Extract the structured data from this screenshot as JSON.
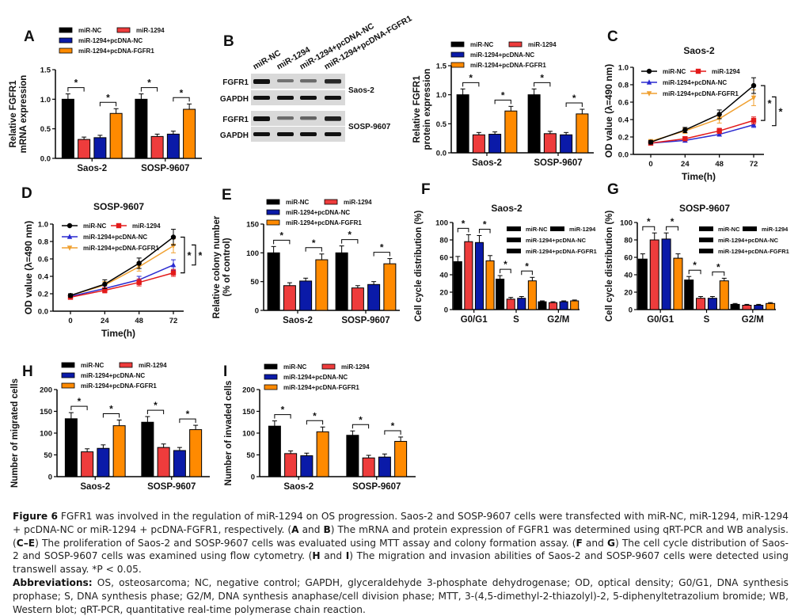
{
  "figure": {
    "number_label": "Figure 6",
    "title_text": "FGFR1 was involved in the regulation of miR-1294 on OS progression. Saos-2 and SOSP-9607 cells were transfected with miR-NC, miR-1294, miR-1294 + pcDNA-NC or miR-1294 + pcDNA-FGFR1, respectively.",
    "caption_parts": [
      {
        "t": "(",
        "b": false
      },
      {
        "t": "A",
        "b": true
      },
      {
        "t": " and ",
        "b": false
      },
      {
        "t": "B",
        "b": true
      },
      {
        "t": ") The mRNA and protein expression of FGFR1 was determined using qRT-PCR and WB analysis. (",
        "b": false
      },
      {
        "t": "C–E",
        "b": true
      },
      {
        "t": ") The proliferation of Saos-2 and SOSP-9607 cells was evaluated using MTT assay and colony formation assay. (",
        "b": false
      },
      {
        "t": "F",
        "b": true
      },
      {
        "t": " and ",
        "b": false
      },
      {
        "t": "G",
        "b": true
      },
      {
        "t": ") The cell cycle distribution of Saos-2 and SOSP-9607 cells was examined using flow cytometry. (",
        "b": false
      },
      {
        "t": "H",
        "b": true
      },
      {
        "t": " and ",
        "b": false
      },
      {
        "t": "I",
        "b": true
      },
      {
        "t": ") The migration and invasion abilities of Saos-2 and SOSP-9607 cells were detected using transwell assay. *P < 0.05.",
        "b": false
      }
    ],
    "abbreviations_label": "Abbreviations:",
    "abbreviations_text": "OS, osteosarcoma; NC, negative control; GAPDH, glyceraldehyde 3-phosphate dehydrogenase; OD, optical density; G0/G1, DNA synthesis prophase; S, DNA synthesis phase; G2/M, DNA synthesis anaphase/cell division phase; MTT, 3-(4,5-dimethyl-2-thiazolyl)-2, 5-diphenyltetrazolium bromide; WB, Western blot; qRT-PCR, quantitative real-time polymerase chain reaction."
  },
  "colors": {
    "miR-NC": "#000000",
    "miR-1294": "#ee3c3c",
    "miR-1294+pcDNA-NC": "#0a1aa8",
    "miR-1294+pcDNA-FGFR1": "#ff8a00",
    "line_orange": "#f0a030",
    "line_red": "#e31a1a",
    "line_blue": "#2a2ad0"
  },
  "legend_names": [
    "miR-NC",
    "miR-1294",
    "miR-1294+pcDNA-NC",
    "miR-1294+pcDNA-FGFR1"
  ],
  "panel_B_blot": {
    "label": "B",
    "lane_labels": [
      "miR-NC",
      "miR-1294",
      "miR-1294+pcDNA-NC",
      "miR-1294+pcDNA-FGFR1"
    ],
    "rows": [
      {
        "protein": "FGFR1",
        "cell_line": "Saos-2",
        "intensity": [
          1.0,
          0.35,
          0.4,
          0.85
        ]
      },
      {
        "protein": "GAPDH",
        "cell_line": "Saos-2",
        "intensity": [
          1.0,
          1.0,
          1.0,
          1.0
        ]
      },
      {
        "protein": "FGFR1",
        "cell_line": "SOSP-9607",
        "intensity": [
          1.0,
          0.4,
          0.45,
          0.9
        ]
      },
      {
        "protein": "GAPDH",
        "cell_line": "SOSP-9607",
        "intensity": [
          1.0,
          1.0,
          1.0,
          1.0
        ]
      }
    ],
    "cell_line_labels": [
      "Saos-2",
      "SOSP-9607"
    ]
  },
  "chart_data": [
    {
      "id": "A",
      "panel_label": "A",
      "type": "bar",
      "title": "",
      "ylabel": [
        "Relative FGFR1",
        "mRNA expression"
      ],
      "ylim": [
        0,
        1.5
      ],
      "yticks": [
        "0.0",
        "0.5",
        "1.0",
        "1.5"
      ],
      "ytick_values": [
        0,
        0.5,
        1.0,
        1.5
      ],
      "categories": [
        "Saos-2",
        "SOSP-9607"
      ],
      "series": [
        {
          "name": "miR-NC",
          "values": [
            1.0,
            1.0
          ],
          "errors": [
            0.09,
            0.09
          ]
        },
        {
          "name": "miR-1294",
          "values": [
            0.32,
            0.37
          ],
          "errors": [
            0.04,
            0.04
          ]
        },
        {
          "name": "miR-1294+pcDNA-NC",
          "values": [
            0.35,
            0.41
          ],
          "errors": [
            0.04,
            0.05
          ]
        },
        {
          "name": "miR-1294+pcDNA-FGFR1",
          "values": [
            0.76,
            0.83
          ],
          "errors": [
            0.08,
            0.09
          ]
        }
      ],
      "significance": [
        {
          "cat": 0,
          "pair": [
            0,
            1
          ]
        },
        {
          "cat": 0,
          "pair": [
            2,
            3
          ]
        },
        {
          "cat": 1,
          "pair": [
            0,
            1
          ]
        },
        {
          "cat": 1,
          "pair": [
            2,
            3
          ]
        }
      ],
      "sig_label": "*",
      "legend": "top"
    },
    {
      "id": "B2",
      "panel_label": "",
      "type": "bar",
      "title": "",
      "ylabel": [
        "Relative FGFR1",
        "protein expression"
      ],
      "ylim": [
        0,
        1.5
      ],
      "yticks": [
        "0.0",
        "0.5",
        "1.0",
        "1.5"
      ],
      "ytick_values": [
        0,
        0.5,
        1.0,
        1.5
      ],
      "categories": [
        "Saos-2",
        "SOSP-9607"
      ],
      "series": [
        {
          "name": "miR-NC",
          "values": [
            1.0,
            1.0
          ],
          "errors": [
            0.1,
            0.1
          ]
        },
        {
          "name": "miR-1294",
          "values": [
            0.31,
            0.33
          ],
          "errors": [
            0.04,
            0.04
          ]
        },
        {
          "name": "miR-1294+pcDNA-NC",
          "values": [
            0.32,
            0.31
          ],
          "errors": [
            0.04,
            0.04
          ]
        },
        {
          "name": "miR-1294+pcDNA-FGFR1",
          "values": [
            0.72,
            0.67
          ],
          "errors": [
            0.08,
            0.08
          ]
        }
      ],
      "significance": [
        {
          "cat": 0,
          "pair": [
            0,
            1
          ]
        },
        {
          "cat": 0,
          "pair": [
            2,
            3
          ]
        },
        {
          "cat": 1,
          "pair": [
            0,
            1
          ]
        },
        {
          "cat": 1,
          "pair": [
            2,
            3
          ]
        }
      ],
      "sig_label": "*",
      "legend": "top"
    },
    {
      "id": "C",
      "panel_label": "C",
      "type": "line",
      "title": "Saos-2",
      "xlabel": "Time(h)",
      "ylabel": "OD value (λ=490 nm)",
      "x": [
        0,
        24,
        48,
        72
      ],
      "xticks": [
        "0",
        "24",
        "48",
        "72"
      ],
      "ylim": [
        0,
        1.0
      ],
      "yticks": [
        "0.0",
        "0.2",
        "0.4",
        "0.6",
        "0.8",
        "1.0"
      ],
      "ytick_values": [
        0,
        0.2,
        0.4,
        0.6,
        0.8,
        1.0
      ],
      "series": [
        {
          "name": "miR-NC",
          "marker": "circle",
          "values": [
            0.14,
            0.28,
            0.46,
            0.79
          ],
          "errors": [
            0.02,
            0.03,
            0.05,
            0.09
          ]
        },
        {
          "name": "miR-1294",
          "marker": "square",
          "values": [
            0.13,
            0.18,
            0.27,
            0.39
          ],
          "errors": [
            0.01,
            0.02,
            0.03,
            0.04
          ]
        },
        {
          "name": "miR-1294+pcDNA-NC",
          "marker": "triangle-up",
          "values": [
            0.13,
            0.16,
            0.23,
            0.34
          ],
          "errors": [
            0.01,
            0.02,
            0.02,
            0.03
          ]
        },
        {
          "name": "miR-1294+pcDNA-FGFR1",
          "marker": "triangle-down",
          "values": [
            0.15,
            0.27,
            0.41,
            0.65
          ],
          "errors": [
            0.02,
            0.03,
            0.05,
            0.09
          ]
        }
      ],
      "significance_brackets": [
        {
          "from": 0.79,
          "to": 0.39,
          "label": "*"
        },
        {
          "from": 0.66,
          "to": 0.33,
          "label": "*"
        }
      ],
      "legend": "top-left"
    },
    {
      "id": "D",
      "panel_label": "D",
      "type": "line",
      "title": "SOSP-9607",
      "xlabel": "Time(h)",
      "ylabel": "OD value (λ=490 nm)",
      "x": [
        0,
        24,
        48,
        72
      ],
      "xticks": [
        "0",
        "24",
        "48",
        "72"
      ],
      "ylim": [
        0,
        1.0
      ],
      "yticks": [
        "0.0",
        "0.2",
        "0.4",
        "0.6",
        "0.8",
        "1.0"
      ],
      "ytick_values": [
        0,
        0.2,
        0.4,
        0.6,
        0.8,
        1.0
      ],
      "series": [
        {
          "name": "miR-NC",
          "marker": "circle",
          "values": [
            0.18,
            0.31,
            0.55,
            0.85
          ],
          "errors": [
            0.02,
            0.05,
            0.06,
            0.09
          ]
        },
        {
          "name": "miR-1294",
          "marker": "square",
          "values": [
            0.16,
            0.24,
            0.33,
            0.44
          ],
          "errors": [
            0.02,
            0.03,
            0.04,
            0.04
          ]
        },
        {
          "name": "miR-1294+pcDNA-NC",
          "marker": "triangle-up",
          "values": [
            0.17,
            0.26,
            0.36,
            0.53
          ],
          "errors": [
            0.02,
            0.03,
            0.04,
            0.06
          ]
        },
        {
          "name": "miR-1294+pcDNA-FGFR1",
          "marker": "triangle-down",
          "values": [
            0.18,
            0.3,
            0.51,
            0.75
          ],
          "errors": [
            0.02,
            0.04,
            0.05,
            0.08
          ]
        }
      ],
      "significance_brackets": [
        {
          "from": 0.85,
          "to": 0.44,
          "label": "*"
        },
        {
          "from": 0.76,
          "to": 0.53,
          "label": "*"
        }
      ],
      "legend": "top-left"
    },
    {
      "id": "E",
      "panel_label": "E",
      "type": "bar",
      "title": "",
      "ylabel": [
        "Relative colony number",
        "(% of control)"
      ],
      "ylim": [
        0,
        150
      ],
      "yticks": [
        "0",
        "50",
        "100",
        "150"
      ],
      "ytick_values": [
        0,
        50,
        100,
        150
      ],
      "categories": [
        "Saos-2",
        "SOSP-9607"
      ],
      "series": [
        {
          "name": "miR-NC",
          "values": [
            100,
            100
          ],
          "errors": [
            11,
            12
          ]
        },
        {
          "name": "miR-1294",
          "values": [
            43,
            39
          ],
          "errors": [
            5,
            4
          ]
        },
        {
          "name": "miR-1294+pcDNA-NC",
          "values": [
            51,
            45
          ],
          "errors": [
            5,
            5
          ]
        },
        {
          "name": "miR-1294+pcDNA-FGFR1",
          "values": [
            88,
            81
          ],
          "errors": [
            10,
            9
          ]
        }
      ],
      "significance": [
        {
          "cat": 0,
          "pair": [
            0,
            1
          ]
        },
        {
          "cat": 0,
          "pair": [
            2,
            3
          ]
        },
        {
          "cat": 1,
          "pair": [
            0,
            1
          ]
        },
        {
          "cat": 1,
          "pair": [
            2,
            3
          ]
        }
      ],
      "sig_label": "*",
      "legend": "top"
    },
    {
      "id": "F",
      "panel_label": "F",
      "type": "bar",
      "title": "Saos-2",
      "ylabel": [
        "Cell cycle distribution (%)"
      ],
      "ylim": [
        0,
        100
      ],
      "yticks": [
        "0",
        "20",
        "40",
        "60",
        "80",
        "100"
      ],
      "ytick_values": [
        0,
        20,
        40,
        60,
        80,
        100
      ],
      "categories": [
        "G0/G1",
        "S",
        "G2/M"
      ],
      "series": [
        {
          "name": "miR-NC",
          "values": [
            55,
            35,
            9
          ],
          "errors": [
            6,
            4,
            1
          ]
        },
        {
          "name": "miR-1294",
          "values": [
            78,
            12,
            8
          ],
          "errors": [
            8,
            2,
            1
          ]
        },
        {
          "name": "miR-1294+pcDNA-NC",
          "values": [
            77,
            13,
            9
          ],
          "errors": [
            8,
            2,
            1
          ]
        },
        {
          "name": "miR-1294+pcDNA-FGFR1",
          "values": [
            56,
            33,
            10
          ],
          "errors": [
            6,
            4,
            1
          ]
        }
      ],
      "significance": [
        {
          "cat": 0,
          "pair": [
            0,
            1
          ]
        },
        {
          "cat": 0,
          "pair": [
            2,
            3
          ]
        },
        {
          "cat": 1,
          "pair": [
            0,
            1
          ]
        },
        {
          "cat": 1,
          "pair": [
            2,
            3
          ]
        }
      ],
      "sig_label": "*",
      "legend": "right"
    },
    {
      "id": "G",
      "panel_label": "G",
      "type": "bar",
      "title": "SOSP-9607",
      "ylabel": [
        "Cell cycle distribution (%)"
      ],
      "ylim": [
        0,
        100
      ],
      "yticks": [
        "0",
        "20",
        "40",
        "60",
        "80",
        "100"
      ],
      "ytick_values": [
        0,
        20,
        40,
        60,
        80,
        100
      ],
      "categories": [
        "G0/G1",
        "S",
        "G2/M"
      ],
      "series": [
        {
          "name": "miR-NC",
          "values": [
            58,
            34,
            6
          ],
          "errors": [
            6,
            4,
            1
          ]
        },
        {
          "name": "miR-1294",
          "values": [
            80,
            13,
            5
          ],
          "errors": [
            8,
            2,
            1
          ]
        },
        {
          "name": "miR-1294+pcDNA-NC",
          "values": [
            81,
            13,
            5
          ],
          "errors": [
            7,
            2,
            1
          ]
        },
        {
          "name": "miR-1294+pcDNA-FGFR1",
          "values": [
            59,
            33,
            7
          ],
          "errors": [
            5,
            3,
            1
          ]
        }
      ],
      "significance": [
        {
          "cat": 0,
          "pair": [
            0,
            1
          ]
        },
        {
          "cat": 0,
          "pair": [
            2,
            3
          ]
        },
        {
          "cat": 1,
          "pair": [
            0,
            1
          ]
        },
        {
          "cat": 1,
          "pair": [
            2,
            3
          ]
        }
      ],
      "sig_label": "*",
      "legend": "right"
    },
    {
      "id": "H",
      "panel_label": "H",
      "type": "bar",
      "title": "",
      "ylabel": [
        "Number of migrated cells"
      ],
      "ylim": [
        0,
        200
      ],
      "yticks": [
        "0",
        "50",
        "100",
        "150",
        "200"
      ],
      "ytick_values": [
        0,
        50,
        100,
        150,
        200
      ],
      "categories": [
        "Saos-2",
        "SOSP-9607"
      ],
      "series": [
        {
          "name": "miR-NC",
          "values": [
            133,
            125
          ],
          "errors": [
            14,
            13
          ]
        },
        {
          "name": "miR-1294",
          "values": [
            57,
            67
          ],
          "errors": [
            7,
            8
          ]
        },
        {
          "name": "miR-1294+pcDNA-NC",
          "values": [
            65,
            60
          ],
          "errors": [
            8,
            7
          ]
        },
        {
          "name": "miR-1294+pcDNA-FGFR1",
          "values": [
            117,
            108
          ],
          "errors": [
            13,
            10
          ]
        }
      ],
      "significance": [
        {
          "cat": 0,
          "pair": [
            0,
            1
          ]
        },
        {
          "cat": 0,
          "pair": [
            2,
            3
          ]
        },
        {
          "cat": 1,
          "pair": [
            0,
            1
          ]
        },
        {
          "cat": 1,
          "pair": [
            2,
            3
          ]
        }
      ],
      "sig_label": "*",
      "legend": "top"
    },
    {
      "id": "I",
      "panel_label": "I",
      "type": "bar",
      "title": "",
      "ylabel": [
        "Number of invaded cells"
      ],
      "ylim": [
        0,
        200
      ],
      "yticks": [
        "0",
        "50",
        "100",
        "150",
        "200"
      ],
      "ytick_values": [
        0,
        50,
        100,
        150,
        200
      ],
      "categories": [
        "Saos-2",
        "SOSP-9607"
      ],
      "series": [
        {
          "name": "miR-NC",
          "values": [
            116,
            95
          ],
          "errors": [
            12,
            10
          ]
        },
        {
          "name": "miR-1294",
          "values": [
            53,
            43
          ],
          "errors": [
            6,
            6
          ]
        },
        {
          "name": "miR-1294+pcDNA-NC",
          "values": [
            48,
            45
          ],
          "errors": [
            6,
            7
          ]
        },
        {
          "name": "miR-1294+pcDNA-FGFR1",
          "values": [
            103,
            81
          ],
          "errors": [
            11,
            10
          ]
        }
      ],
      "significance": [
        {
          "cat": 0,
          "pair": [
            0,
            1
          ]
        },
        {
          "cat": 0,
          "pair": [
            2,
            3
          ]
        },
        {
          "cat": 1,
          "pair": [
            0,
            1
          ]
        },
        {
          "cat": 1,
          "pair": [
            2,
            3
          ]
        }
      ],
      "sig_label": "*",
      "legend": "top"
    }
  ]
}
